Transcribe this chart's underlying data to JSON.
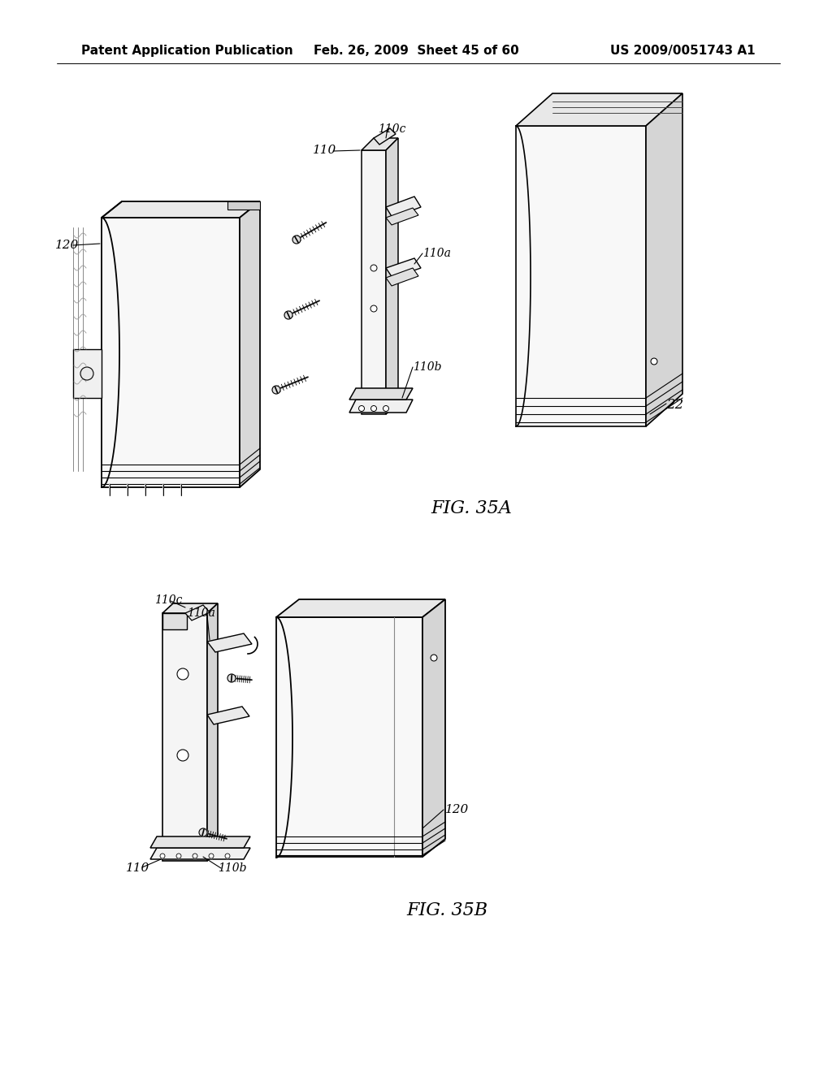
{
  "background_color": "#ffffff",
  "header_left": "Patent Application Publication",
  "header_center": "Feb. 26, 2009  Sheet 45 of 60",
  "header_right": "US 2009/0051743 A1",
  "fig_label_35A": "FIG. 35A",
  "fig_label_35B": "FIG. 35B",
  "line_color": "#000000",
  "header_fontsize": 11,
  "label_fontsize": 10,
  "fig_label_fontsize": 16
}
